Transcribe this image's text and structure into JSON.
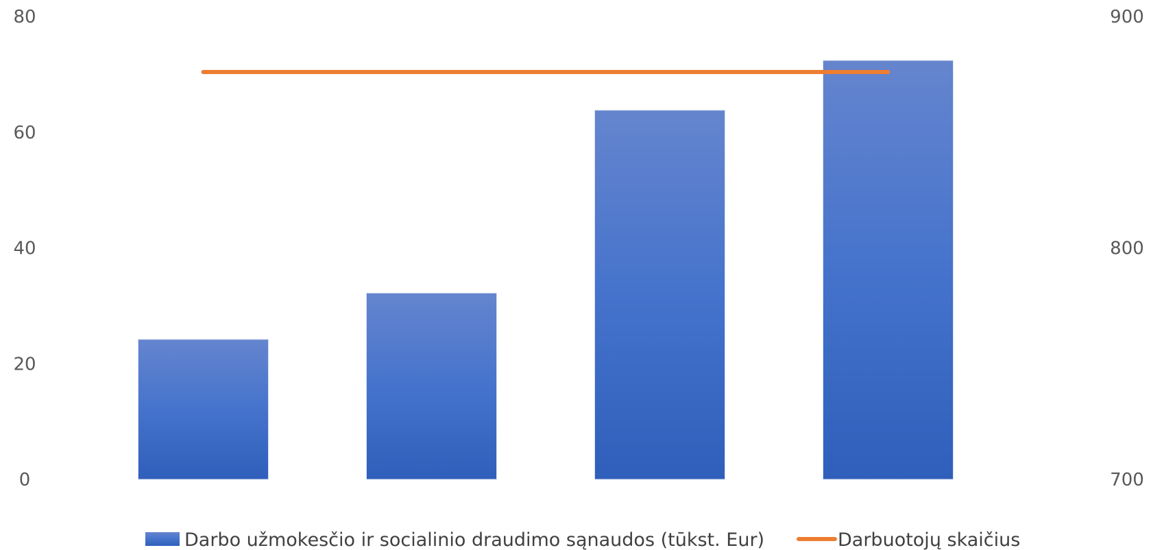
{
  "chart_data": {
    "type": "bar",
    "title": "",
    "xlabel": "",
    "ylabel": "",
    "categories": [
      "",
      "",
      "",
      ""
    ],
    "series": [
      {
        "name": "Darbo užmokesčio ir socialinio draudimo sąnaudos (tūkst. Eur)",
        "type": "bar",
        "axis": "left",
        "color": "#4472C4",
        "values": [
          24.2,
          32.2,
          63.8,
          72.4
        ]
      },
      {
        "name": "Darbuotojų skaičius",
        "type": "line",
        "axis": "right",
        "color": "#ED7D31",
        "values": [
          876,
          876,
          876,
          876
        ]
      }
    ],
    "y_left": {
      "lim": [
        0,
        80
      ],
      "ticks": [
        "0",
        "20",
        "40",
        "60",
        "80"
      ]
    },
    "y_right": {
      "lim": [
        700,
        900
      ],
      "ticks": [
        "700",
        "800",
        "900"
      ]
    },
    "grid": false,
    "legend": "bottom"
  }
}
